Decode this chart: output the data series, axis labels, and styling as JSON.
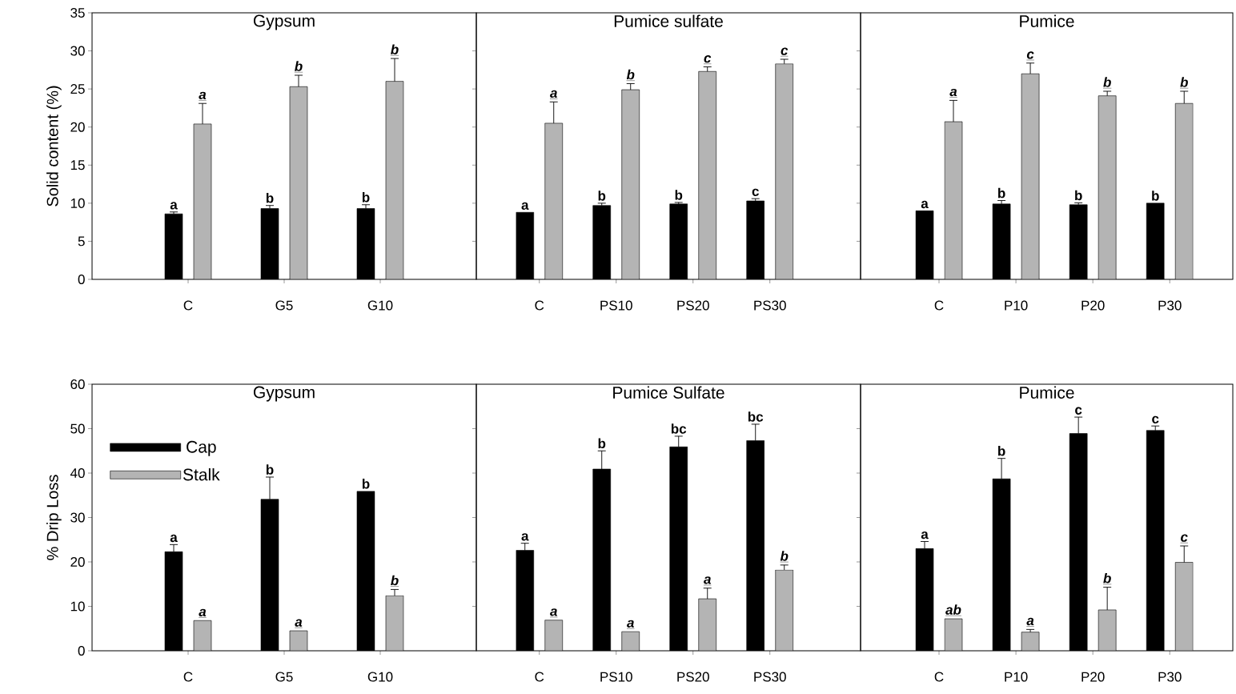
{
  "chart_data": [
    {
      "type": "bar",
      "title": "Gypsum",
      "ylabel": "Solid content (%)",
      "categories": [
        "C",
        "G5",
        "G10"
      ],
      "ylim": [
        0,
        35
      ],
      "yticks": [
        0,
        5,
        10,
        15,
        20,
        25,
        30,
        35
      ],
      "series": [
        {
          "color": "#000000",
          "values": [
            8.6,
            9.3,
            9.3
          ],
          "errors": [
            0.25,
            0.4,
            0.5
          ],
          "value_labels": [
            "a",
            "b",
            "b"
          ]
        },
        {
          "color": "#b4b4b4",
          "values": [
            20.4,
            25.3,
            26.0
          ],
          "errors": [
            2.7,
            1.5,
            3.0
          ],
          "value_labels": [
            "a",
            "b",
            "b"
          ]
        }
      ]
    },
    {
      "type": "bar",
      "title": "Pumice sulfate",
      "categories": [
        "C",
        "PS10",
        "PS20",
        "PS30"
      ],
      "ylim": [
        0,
        35
      ],
      "yticks": [
        0,
        5,
        10,
        15,
        20,
        25,
        30,
        35
      ],
      "tick_labels": "x",
      "series": [
        {
          "color": "#000000",
          "values": [
            8.8,
            9.7,
            9.9,
            10.3
          ],
          "errors": [
            null,
            0.3,
            0.2,
            0.3
          ],
          "value_labels": [
            "a",
            "b",
            "b",
            "c"
          ]
        },
        {
          "color": "#b4b4b4",
          "values": [
            20.5,
            24.9,
            27.3,
            28.3
          ],
          "errors": [
            2.8,
            0.8,
            0.6,
            0.6
          ],
          "value_labels": [
            "a",
            "b",
            "c",
            "c"
          ]
        }
      ]
    },
    {
      "type": "bar",
      "title": "Pumice",
      "categories": [
        "C",
        "P10",
        "P20",
        "P30"
      ],
      "ylim": [
        0,
        35
      ],
      "yticks": [
        0,
        5,
        10,
        15,
        20,
        25,
        30,
        35
      ],
      "tick_labels": "x",
      "series": [
        {
          "color": "#000000",
          "values": [
            9.0,
            9.9,
            9.8,
            10.0
          ],
          "errors": [
            null,
            0.45,
            0.25,
            null
          ],
          "value_labels": [
            "a",
            "b",
            "b",
            "b"
          ]
        },
        {
          "color": "#b4b4b4",
          "values": [
            20.7,
            27.0,
            24.1,
            23.1
          ],
          "errors": [
            2.8,
            1.4,
            0.6,
            1.6
          ],
          "value_labels": [
            "a",
            "c",
            "b",
            "b"
          ]
        }
      ]
    },
    {
      "type": "bar",
      "title": "Gypsum",
      "ylabel": "% Drip Loss",
      "categories": [
        "C",
        "G5",
        "G10"
      ],
      "ylim": [
        0,
        60
      ],
      "yticks": [
        0,
        10,
        20,
        30,
        40,
        50,
        60
      ],
      "legend": "top left",
      "series": [
        {
          "name": "Cap",
          "color": "#000000",
          "values": [
            22.3,
            34.1,
            35.9
          ],
          "errors": [
            1.6,
            5.0,
            null
          ],
          "value_labels": [
            "a",
            "b",
            "b"
          ]
        },
        {
          "name": "Stalk",
          "color": "#b4b4b4",
          "values": [
            6.8,
            4.5,
            12.4
          ],
          "errors": [
            null,
            null,
            1.4
          ],
          "value_labels": [
            "a",
            "a",
            "b"
          ]
        }
      ]
    },
    {
      "type": "bar",
      "title": "Pumice Sulfate",
      "categories": [
        "C",
        "PS10",
        "PS20",
        "PS30"
      ],
      "ylim": [
        0,
        60
      ],
      "yticks": [
        0,
        10,
        20,
        30,
        40,
        50,
        60
      ],
      "tick_labels": "x",
      "series": [
        {
          "color": "#000000",
          "values": [
            22.6,
            40.9,
            45.9,
            47.3
          ],
          "errors": [
            1.6,
            4.1,
            2.4,
            3.7
          ],
          "value_labels": [
            "a",
            "b",
            "bc",
            "bc"
          ]
        },
        {
          "color": "#b4b4b4",
          "values": [
            6.9,
            4.3,
            11.7,
            18.2
          ],
          "errors": [
            null,
            null,
            2.4,
            1.1
          ],
          "value_labels": [
            "a",
            "a",
            "a",
            "b"
          ]
        }
      ]
    },
    {
      "type": "bar",
      "title": "Pumice",
      "categories": [
        "C",
        "P10",
        "P20",
        "P30"
      ],
      "ylim": [
        0,
        60
      ],
      "yticks": [
        0,
        10,
        20,
        30,
        40,
        50,
        60
      ],
      "tick_labels": "x",
      "series": [
        {
          "color": "#000000",
          "values": [
            23.0,
            38.7,
            48.9,
            49.6
          ],
          "errors": [
            1.6,
            4.6,
            3.7,
            1.0
          ],
          "value_labels": [
            "a",
            "b",
            "c",
            "c"
          ]
        },
        {
          "color": "#b4b4b4",
          "values": [
            7.2,
            4.2,
            9.2,
            19.9
          ],
          "errors": [
            null,
            0.6,
            5.1,
            3.7
          ],
          "value_labels": [
            "ab",
            "a",
            "b",
            "c"
          ]
        }
      ]
    }
  ]
}
